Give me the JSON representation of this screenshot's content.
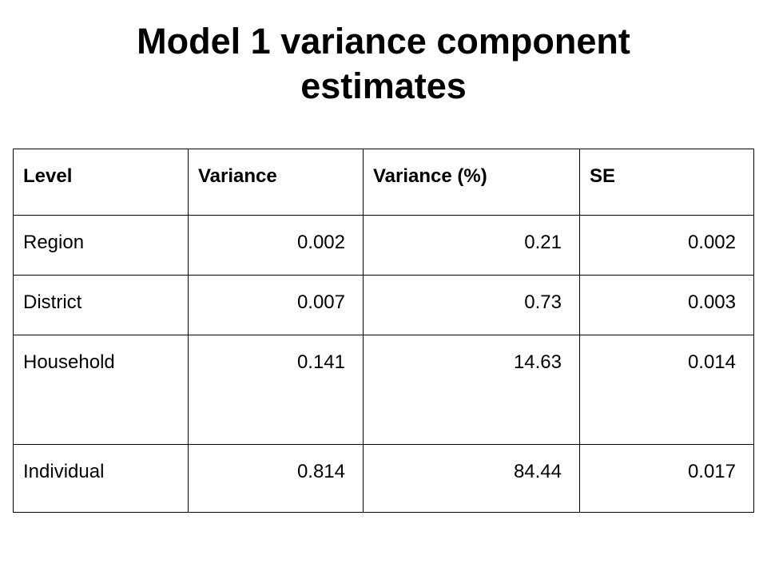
{
  "title": {
    "line1": "Model 1 variance component",
    "line2": "estimates"
  },
  "table": {
    "headers": [
      "Level",
      "Variance",
      "Variance (%)",
      "SE"
    ],
    "rows": [
      {
        "level": "Region",
        "variance": "0.002",
        "variance_pct": "0.21",
        "se": "0.002"
      },
      {
        "level": "District",
        "variance": "0.007",
        "variance_pct": "0.73",
        "se": "0.003"
      },
      {
        "level": "Household",
        "variance": "0.141",
        "variance_pct": "14.63",
        "se": "0.014"
      },
      {
        "level": "Individual",
        "variance": "0.814",
        "variance_pct": "84.44",
        "se": "0.017"
      }
    ]
  }
}
